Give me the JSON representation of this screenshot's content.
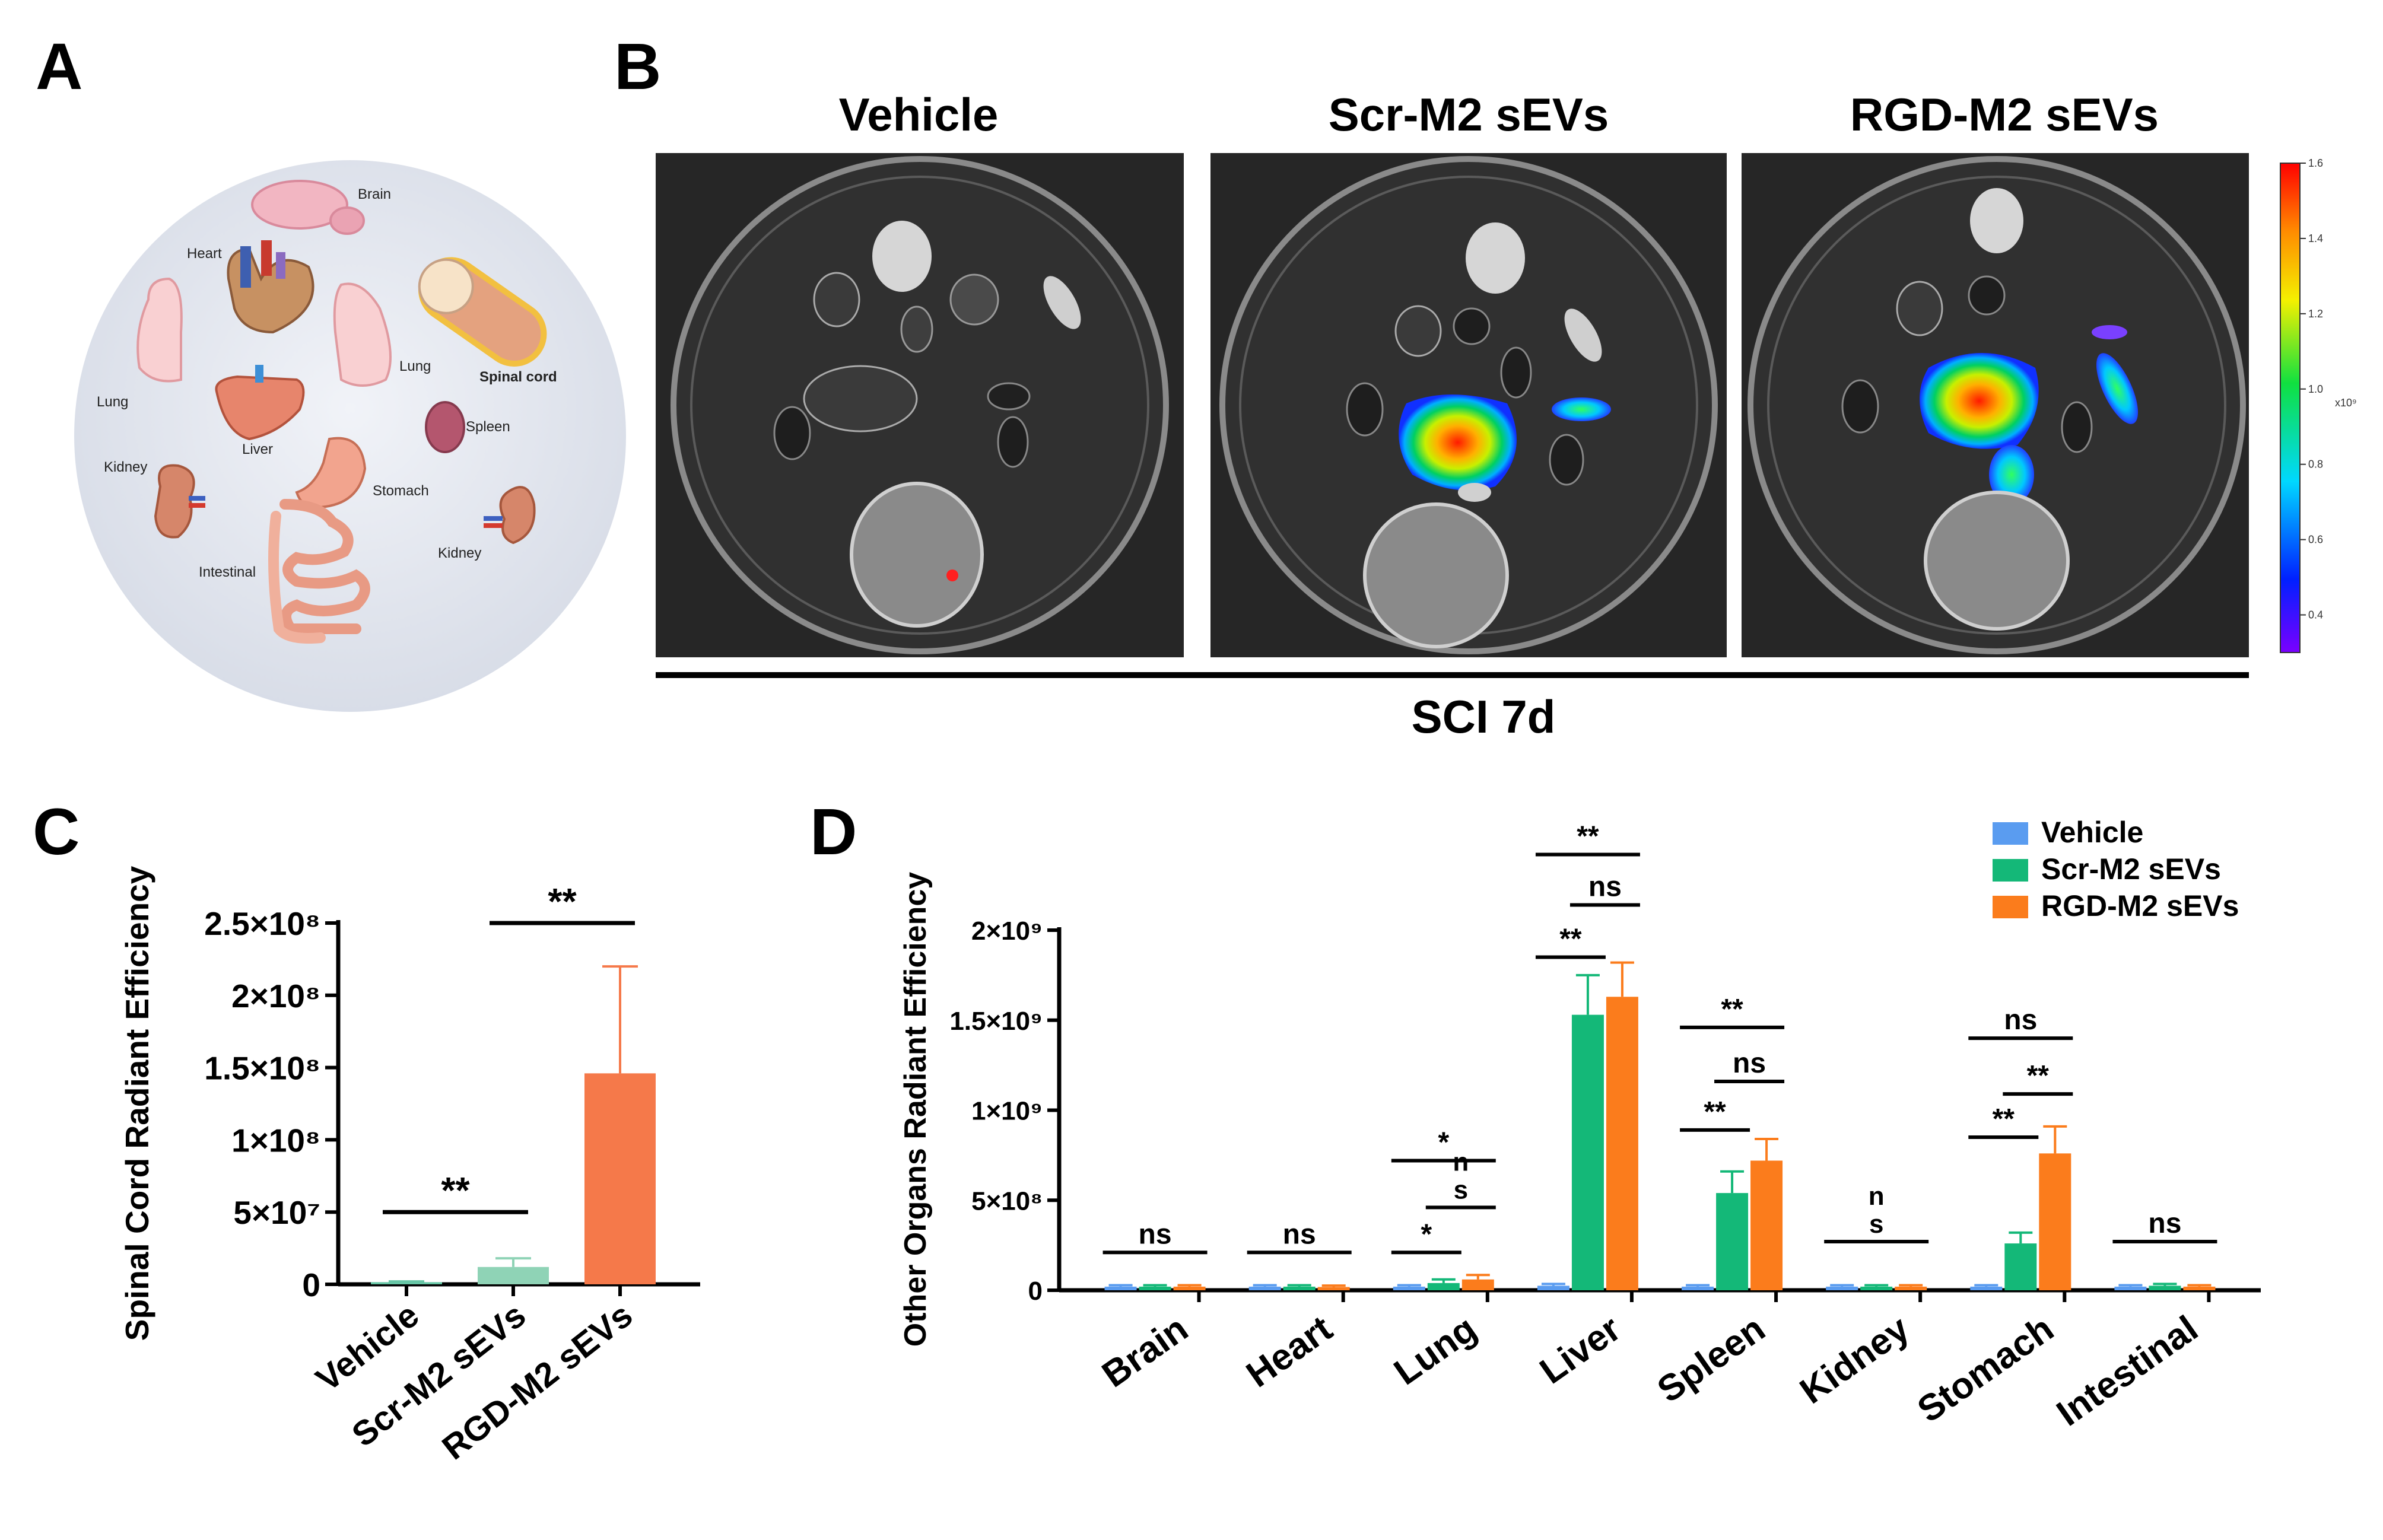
{
  "panels": {
    "a": "A",
    "b": "B",
    "c": "C",
    "d": "D"
  },
  "panel_a": {
    "organs": [
      "Brain",
      "Heart",
      "Lung",
      "Lung",
      "Spinal cord",
      "Spleen",
      "Liver",
      "Kidney",
      "Stomach",
      "Kidney",
      "Intestinal"
    ]
  },
  "panel_b": {
    "groups": [
      "Vehicle",
      "Scr-M2 sEVs",
      "RGD-M2 sEVs"
    ],
    "footer": "SCI 7d",
    "colorbar": {
      "ticks": [
        "1.6",
        "1.4",
        "1.2",
        "1.0",
        "0.8",
        "0.6",
        "0.4"
      ],
      "unit": "x10⁹",
      "max": 1.6,
      "min": 0.3
    },
    "colors": {
      "bg": "#262626",
      "dish": "#3c3c3c"
    }
  },
  "chart_data": [
    {
      "type": "bar",
      "panel": "C",
      "ylabel": "Spinal Cord Radiant Efficiency",
      "categories": [
        "Vehicle",
        "Scr-M2 sEVs",
        "RGD-M2 sEVs"
      ],
      "values": [
        1500000,
        12000000,
        146000000
      ],
      "errors": [
        500000,
        6000000,
        74000000
      ],
      "colors": [
        "#67c6a6",
        "#8fd3b6",
        "#f5794a"
      ],
      "ylim": [
        0,
        250000000
      ],
      "yticks": [
        0,
        50000000,
        100000000,
        150000000,
        200000000,
        250000000
      ],
      "ytick_labels": [
        "0",
        "5×10⁷",
        "1×10⁸",
        "1.5×10⁸",
        "2×10⁸",
        "2.5×10⁸"
      ],
      "annotations": [
        {
          "text": "**",
          "from": 0,
          "to": 1,
          "level": 50000000
        },
        {
          "text": "**",
          "from": 1,
          "to": 2,
          "level": 250000000
        }
      ]
    },
    {
      "type": "bar",
      "panel": "D",
      "ylabel": "Other Organs Radiant Efficiency",
      "categories": [
        "Brain",
        "Heart",
        "Lung",
        "Liver",
        "Spleen",
        "Kidney",
        "Stomach",
        "Intestinal"
      ],
      "series": [
        {
          "name": "Vehicle",
          "color": "#5a9cf0",
          "values": [
            20000000,
            20000000,
            20000000,
            25000000,
            20000000,
            20000000,
            20000000,
            20000000
          ],
          "errors": [
            8000000,
            8000000,
            8000000,
            10000000,
            8000000,
            8000000,
            8000000,
            8000000
          ]
        },
        {
          "name": "Scr-M2 sEVs",
          "color": "#14b878",
          "values": [
            20000000,
            20000000,
            40000000,
            1530000000,
            540000000,
            20000000,
            260000000,
            25000000
          ],
          "errors": [
            8000000,
            8000000,
            20000000,
            220000000,
            120000000,
            8000000,
            60000000,
            10000000
          ]
        },
        {
          "name": "RGD-M2 sEVs",
          "color": "#fb7c1c",
          "values": [
            20000000,
            18000000,
            60000000,
            1630000000,
            720000000,
            20000000,
            760000000,
            20000000
          ],
          "errors": [
            8000000,
            8000000,
            25000000,
            190000000,
            120000000,
            8000000,
            150000000,
            8000000
          ]
        }
      ],
      "ylim": [
        0,
        2000000000
      ],
      "yticks": [
        0,
        500000000,
        1000000000,
        1500000000,
        2000000000
      ],
      "ytick_labels": [
        "0",
        "5×10⁸",
        "1×10⁹",
        "1.5×10⁹",
        "2×10⁹"
      ],
      "legend": "top-right",
      "annotations": [
        {
          "cat": 0,
          "from": 0,
          "to": 2,
          "level": 210000000,
          "text": "ns"
        },
        {
          "cat": 1,
          "from": 0,
          "to": 2,
          "level": 210000000,
          "text": "ns"
        },
        {
          "cat": 2,
          "from": 0,
          "to": 1,
          "level": 210000000,
          "text": "*"
        },
        {
          "cat": 2,
          "from": 1,
          "to": 2,
          "level": 460000000,
          "text": "s",
          "text2": "n"
        },
        {
          "cat": 2,
          "from": 0,
          "to": 2,
          "level": 720000000,
          "text": "*"
        },
        {
          "cat": 3,
          "from": 0,
          "to": 1,
          "level": 1850000000,
          "text": "**"
        },
        {
          "cat": 3,
          "from": 1,
          "to": 2,
          "level": 2140000000,
          "text": "ns"
        },
        {
          "cat": 3,
          "from": 0,
          "to": 2,
          "level": 2420000000,
          "text": "**"
        },
        {
          "cat": 4,
          "from": 0,
          "to": 1,
          "level": 890000000,
          "text": "**"
        },
        {
          "cat": 4,
          "from": 1,
          "to": 2,
          "level": 1160000000,
          "text": "ns"
        },
        {
          "cat": 4,
          "from": 0,
          "to": 2,
          "level": 1460000000,
          "text": "**"
        },
        {
          "cat": 5,
          "from": 0,
          "to": 2,
          "level": 270000000,
          "text": "s",
          "text2": "n"
        },
        {
          "cat": 6,
          "from": 0,
          "to": 1,
          "level": 850000000,
          "text": "**"
        },
        {
          "cat": 6,
          "from": 1,
          "to": 2,
          "level": 1090000000,
          "text": "**"
        },
        {
          "cat": 6,
          "from": 0,
          "to": 2,
          "level": 1400000000,
          "text": "ns"
        },
        {
          "cat": 7,
          "from": 0,
          "to": 2,
          "level": 270000000,
          "text": "ns"
        }
      ]
    }
  ]
}
